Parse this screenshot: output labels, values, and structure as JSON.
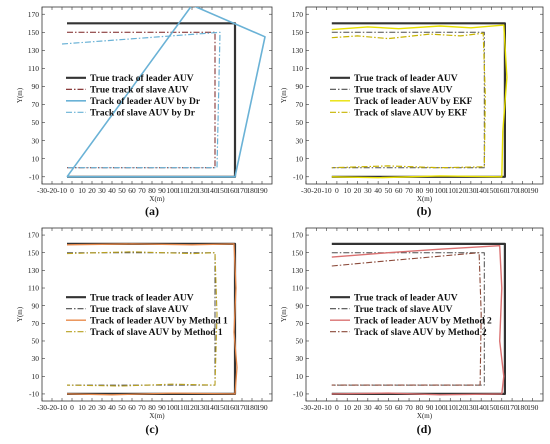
{
  "figure": {
    "panel_labels": [
      "(a)",
      "(b)",
      "(c)",
      "(d)"
    ]
  },
  "chart_data": [
    {
      "type": "line",
      "panel": "(a)",
      "xlabel": "X(m)",
      "ylabel": "Y(m)",
      "xlim": [
        -30,
        200
      ],
      "ylim": [
        -18,
        178
      ],
      "xticks": [
        -30,
        -20,
        -10,
        0,
        10,
        20,
        30,
        40,
        50,
        60,
        70,
        80,
        90,
        100,
        110,
        120,
        130,
        140,
        150,
        160,
        170,
        180,
        190
      ],
      "yticks": [
        -10,
        10,
        30,
        50,
        70,
        90,
        110,
        130,
        150,
        170
      ],
      "legend_position": "center-left",
      "series": [
        {
          "name": "True track of leader AUV",
          "color": "#333333",
          "dash": "solid",
          "width": 2.2,
          "x": [
            -5,
            163,
            163,
            -5
          ],
          "y": [
            160,
            160,
            -10,
            -10
          ]
        },
        {
          "name": "True track of slave AUV",
          "color": "#7a2020",
          "dash": "dashdot",
          "width": 1,
          "x": [
            -5,
            143,
            143,
            -5
          ],
          "y": [
            150,
            150,
            0,
            0
          ]
        },
        {
          "name": "Track of leader AUV by Dr",
          "color": "#6ab2d6",
          "dash": "solid",
          "width": 1.6,
          "x": [
            -5,
            120,
            193,
            163,
            -5
          ],
          "y": [
            -10,
            180,
            145,
            -10,
            -10
          ]
        },
        {
          "name": "Track of slave AUV by Dr",
          "color": "#6ab2d6",
          "dash": "dashdot",
          "width": 1.2,
          "x": [
            -10,
            148,
            145,
            -5
          ],
          "y": [
            137,
            150,
            0,
            0
          ]
        }
      ]
    },
    {
      "type": "line",
      "panel": "(b)",
      "xlabel": "X(m)",
      "ylabel": "Y(m)",
      "xlim": [
        -30,
        200
      ],
      "ylim": [
        -18,
        178
      ],
      "xticks": [
        -30,
        -20,
        -10,
        0,
        10,
        20,
        30,
        40,
        50,
        60,
        70,
        80,
        90,
        100,
        110,
        120,
        130,
        140,
        150,
        160,
        170,
        180,
        190
      ],
      "yticks": [
        -10,
        10,
        30,
        50,
        70,
        90,
        110,
        130,
        150,
        170
      ],
      "legend_position": "center-left",
      "series": [
        {
          "name": "True track of leader AUV",
          "color": "#333333",
          "dash": "solid",
          "width": 2.2,
          "x": [
            -5,
            163,
            163,
            -5
          ],
          "y": [
            160,
            160,
            -10,
            -10
          ]
        },
        {
          "name": "True track of slave AUV",
          "color": "#4d4d4d",
          "dash": "dashdot",
          "width": 1,
          "x": [
            -5,
            143,
            143,
            -5
          ],
          "y": [
            150,
            150,
            0,
            0
          ]
        },
        {
          "name": "Track of leader AUV by EKF",
          "color": "#e8e000",
          "dash": "solid",
          "width": 1.4,
          "x": [
            -5,
            30,
            60,
            100,
            130,
            162,
            165,
            161,
            160,
            100,
            40,
            -5
          ],
          "y": [
            153,
            156,
            154,
            157,
            155,
            158,
            100,
            40,
            -10,
            -9,
            -11,
            -10
          ]
        },
        {
          "name": "Track of slave AUV by EKF",
          "color": "#c8b400",
          "dash": "dashdot",
          "width": 1.2,
          "x": [
            -5,
            20,
            50,
            90,
            120,
            142,
            144,
            143,
            100,
            50,
            -5
          ],
          "y": [
            144,
            146,
            143,
            148,
            146,
            149,
            80,
            1,
            0,
            2,
            0
          ]
        }
      ]
    },
    {
      "type": "line",
      "panel": "(c)",
      "xlabel": "X(m)",
      "ylabel": "Y(m)",
      "xlim": [
        -30,
        200
      ],
      "ylim": [
        -18,
        178
      ],
      "xticks": [
        -30,
        -20,
        -10,
        0,
        10,
        20,
        30,
        40,
        50,
        60,
        70,
        80,
        90,
        100,
        110,
        120,
        130,
        140,
        150,
        160,
        170,
        180,
        190
      ],
      "yticks": [
        -10,
        10,
        30,
        50,
        70,
        90,
        110,
        130,
        150,
        170
      ],
      "legend_position": "center-left",
      "series": [
        {
          "name": "True track of leader AUV",
          "color": "#333333",
          "dash": "solid",
          "width": 2.2,
          "x": [
            -5,
            163,
            163,
            -5
          ],
          "y": [
            160,
            160,
            -10,
            -10
          ]
        },
        {
          "name": "True track of slave AUV",
          "color": "#4d4d4d",
          "dash": "dashdot",
          "width": 1,
          "x": [
            -5,
            143,
            143,
            -5
          ],
          "y": [
            150,
            150,
            0,
            0
          ]
        },
        {
          "name": "Track of leader AUV by Method 1",
          "color": "#e8894a",
          "dash": "solid",
          "width": 1.3,
          "x": [
            -5,
            60,
            120,
            162,
            164,
            162,
            165,
            163,
            100,
            40,
            -5
          ],
          "y": [
            159,
            160,
            159,
            160,
            110,
            60,
            20,
            -10,
            -9,
            -11,
            -10
          ]
        },
        {
          "name": "Track of slave AUV by Method 1",
          "color": "#b8a020",
          "dash": "dashdot",
          "width": 1.1,
          "x": [
            -5,
            60,
            120,
            143,
            145,
            143,
            100,
            50,
            -5
          ],
          "y": [
            149,
            151,
            149,
            150,
            80,
            0,
            1,
            -1,
            0
          ]
        }
      ]
    },
    {
      "type": "line",
      "panel": "(d)",
      "xlabel": "X(m)",
      "ylabel": "Y(m)",
      "xlim": [
        -30,
        200
      ],
      "ylim": [
        -18,
        178
      ],
      "xticks": [
        -30,
        -20,
        -10,
        0,
        10,
        20,
        30,
        40,
        50,
        60,
        70,
        80,
        90,
        100,
        110,
        120,
        130,
        140,
        150,
        160,
        170,
        180,
        190
      ],
      "yticks": [
        -10,
        10,
        30,
        50,
        70,
        90,
        110,
        130,
        150,
        170
      ],
      "legend_position": "center-left",
      "series": [
        {
          "name": "True track of leader AUV",
          "color": "#333333",
          "dash": "solid",
          "width": 2.2,
          "x": [
            -5,
            163,
            163,
            -5
          ],
          "y": [
            160,
            160,
            -10,
            -10
          ]
        },
        {
          "name": "True track of slave AUV",
          "color": "#4d4d4d",
          "dash": "dashdot",
          "width": 1,
          "x": [
            -5,
            143,
            143,
            -5
          ],
          "y": [
            150,
            150,
            0,
            0
          ]
        },
        {
          "name": "Track of leader AUV by Method 2",
          "color": "#d97070",
          "dash": "solid",
          "width": 1.4,
          "x": [
            -5,
            50,
            100,
            158,
            160,
            158,
            162,
            160,
            100,
            50,
            -5
          ],
          "y": [
            145,
            150,
            154,
            158,
            110,
            50,
            10,
            -10,
            -11,
            -9,
            -10
          ]
        },
        {
          "name": "Track of slave AUV by Method 2",
          "color": "#8b4a3a",
          "dash": "dashdot",
          "width": 1.1,
          "x": [
            -5,
            50,
            100,
            138,
            140,
            139,
            -5
          ],
          "y": [
            135,
            141,
            146,
            150,
            80,
            0,
            0
          ]
        }
      ]
    }
  ]
}
